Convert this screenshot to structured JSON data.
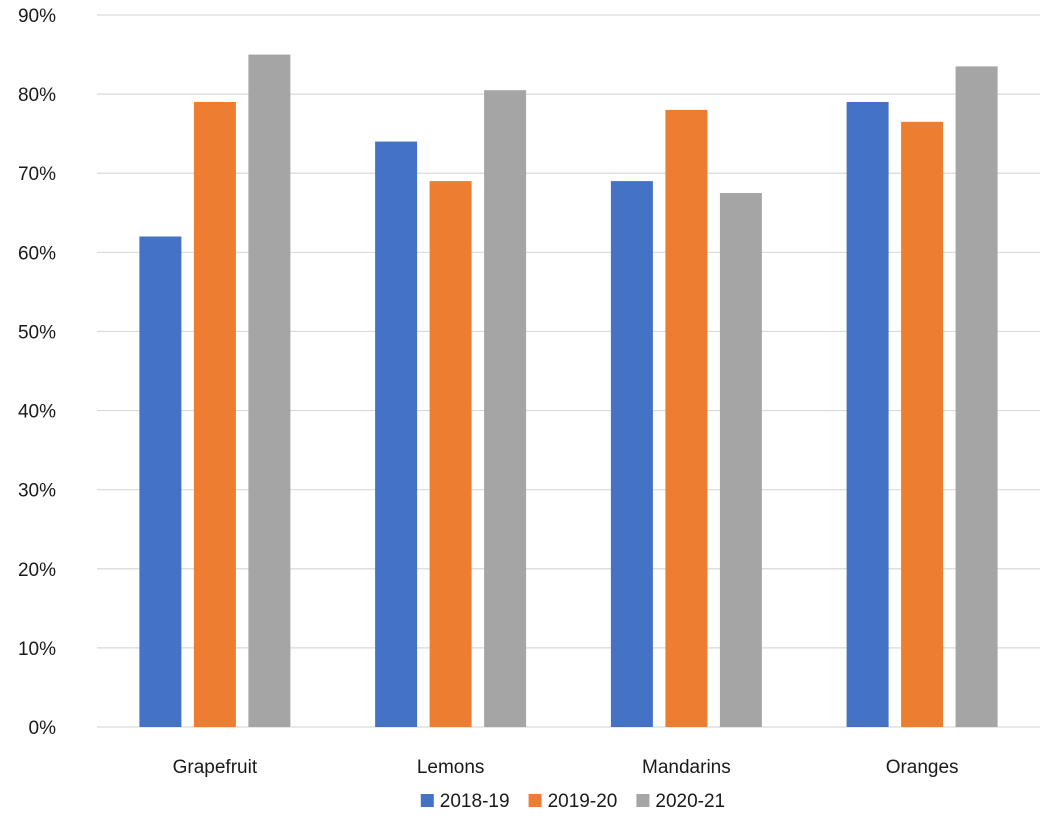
{
  "chart_data": {
    "type": "bar",
    "title": "",
    "xlabel": "",
    "ylabel": "",
    "categories": [
      "Grapefruit",
      "Lemons",
      "Mandarins",
      "Oranges"
    ],
    "series": [
      {
        "name": "2018-19",
        "color": "#4472C4",
        "values": [
          0.62,
          0.74,
          0.69,
          0.79
        ]
      },
      {
        "name": "2019-20",
        "color": "#ED7D31",
        "values": [
          0.79,
          0.69,
          0.78,
          0.765
        ]
      },
      {
        "name": "2020-21",
        "color": "#A5A5A5",
        "values": [
          0.85,
          0.805,
          0.675,
          0.835
        ]
      }
    ],
    "ylim": [
      0,
      0.9
    ],
    "yticks": [
      0,
      0.1,
      0.2,
      0.3,
      0.4,
      0.5,
      0.6,
      0.7,
      0.8,
      0.9
    ],
    "ytick_labels": [
      "0%",
      "10%",
      "20%",
      "30%",
      "40%",
      "50%",
      "60%",
      "70%",
      "80%",
      "90%"
    ],
    "grid": true,
    "legend_position": "bottom",
    "gridline_color": "#D9D9D9"
  }
}
